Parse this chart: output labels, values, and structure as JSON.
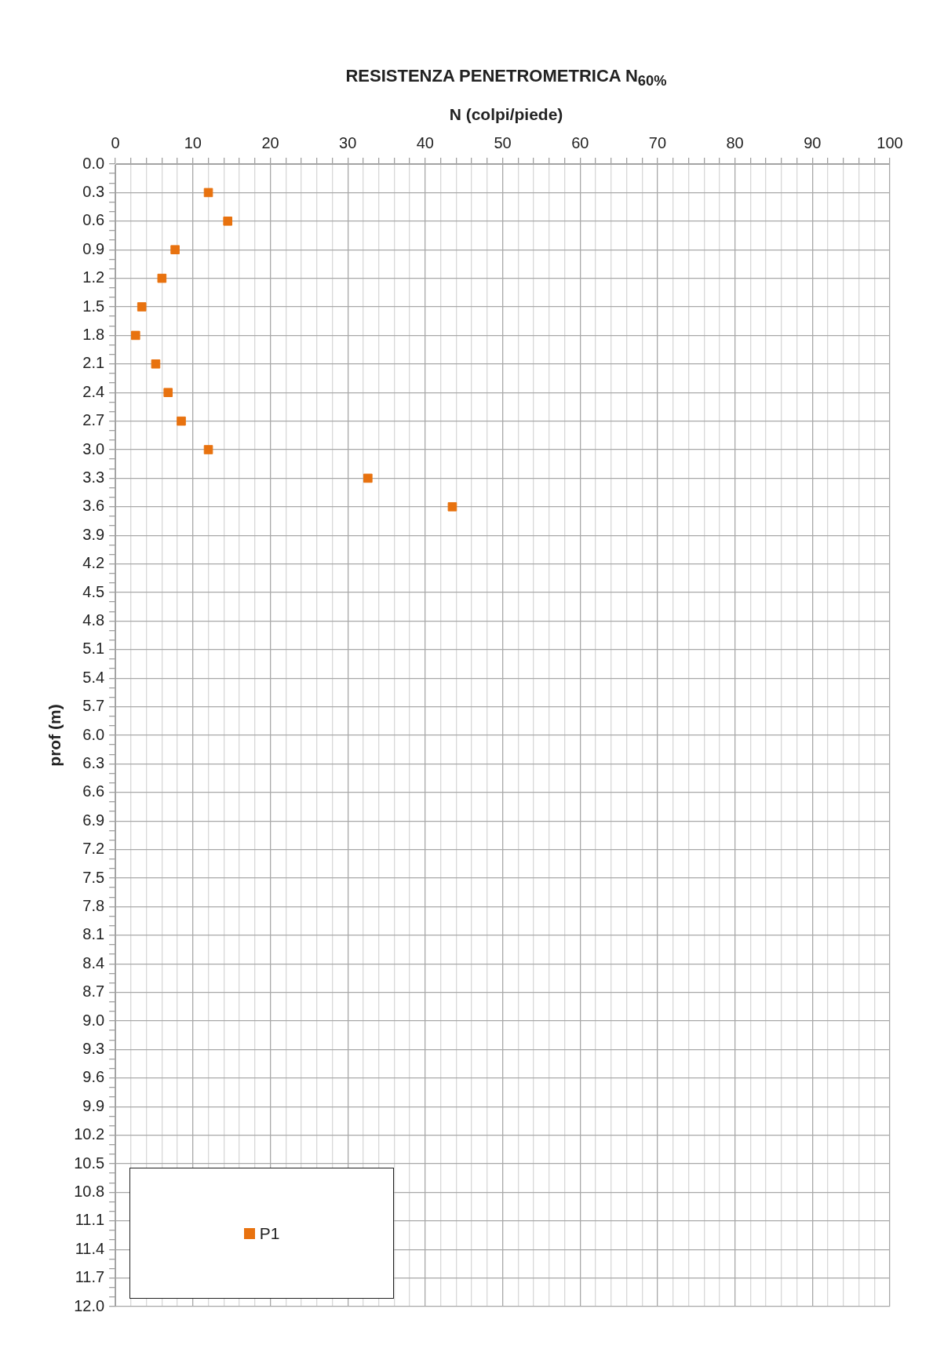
{
  "chart_data": {
    "type": "scatter",
    "title": "RESISTENZA PENETROMETRICA N$_{60%}$",
    "xlabel": "N (colpi/piede)",
    "ylabel": "prof (m)",
    "series": [
      {
        "name": "P1",
        "color": "#e8720f",
        "x": [
          12.0,
          14.5,
          7.7,
          6.0,
          3.4,
          2.6,
          5.2,
          6.8,
          8.5,
          12.0,
          32.6,
          43.5
        ],
        "values": [
          0.3,
          0.6,
          0.9,
          1.2,
          1.5,
          1.8,
          2.1,
          2.4,
          2.7,
          3.0,
          3.3,
          3.6
        ]
      }
    ],
    "marker": "square",
    "grid": true,
    "legend": "bottom left",
    "xlim": [
      0,
      100
    ],
    "xticks": [
      0,
      {
        "value": 2,
        "label": null
      },
      {
        "value": 4,
        "label": null
      },
      {
        "value": 6,
        "label": null
      },
      {
        "value": 8,
        "label": null
      },
      10,
      {
        "value": 12,
        "label": null
      },
      {
        "value": 14,
        "label": null
      },
      {
        "value": 16,
        "label": null
      },
      {
        "value": 18,
        "label": null
      },
      20,
      {
        "value": 22,
        "label": null
      },
      {
        "value": 24,
        "label": null
      },
      {
        "value": 26,
        "label": null
      },
      {
        "value": 28,
        "label": null
      },
      30,
      {
        "value": 32,
        "label": null
      },
      {
        "value": 34,
        "label": null
      },
      {
        "value": 36,
        "label": null
      },
      {
        "value": 38,
        "label": null
      },
      40,
      {
        "value": 42,
        "label": null
      },
      {
        "value": 44,
        "label": null
      },
      {
        "value": 46,
        "label": null
      },
      {
        "value": 48,
        "label": null
      },
      50,
      {
        "value": 52,
        "label": null
      },
      {
        "value": 54,
        "label": null
      },
      {
        "value": 56,
        "label": null
      },
      {
        "value": 58,
        "label": null
      },
      60,
      {
        "value": 62,
        "label": null
      },
      {
        "value": 64,
        "label": null
      },
      {
        "value": 66,
        "label": null
      },
      {
        "value": 68,
        "label": null
      },
      70,
      {
        "value": 72,
        "label": null
      },
      {
        "value": 74,
        "label": null
      },
      {
        "value": 76,
        "label": null
      },
      {
        "value": 78,
        "label": null
      },
      80,
      {
        "value": 82,
        "label": null
      },
      {
        "value": 84,
        "label": null
      },
      {
        "value": 86,
        "label": null
      },
      {
        "value": 88,
        "label": null
      },
      90,
      {
        "value": 92,
        "label": null
      },
      {
        "value": 94,
        "label": null
      },
      {
        "value": 96,
        "label": null
      },
      {
        "value": 98,
        "label": null
      },
      100
    ],
    "ylim": [
      12,
      0
    ],
    "yticks": [
      {
        "value": 0,
        "label": "0.0"
      },
      {
        "value": 0.1,
        "label": null
      },
      {
        "value": 0.2,
        "label": null
      },
      0.3,
      {
        "value": 0.4,
        "label": null
      },
      {
        "value": 0.5,
        "label": null
      },
      0.6,
      {
        "value": 0.7,
        "label": null
      },
      {
        "value": 0.8,
        "label": null
      },
      0.9,
      {
        "value": 1.0,
        "label": null
      },
      {
        "value": 1.1,
        "label": null
      },
      1.2,
      {
        "value": 1.3,
        "label": null
      },
      {
        "value": 1.4,
        "label": null
      },
      1.5,
      {
        "value": 1.6,
        "label": null
      },
      {
        "value": 1.7,
        "label": null
      },
      1.8,
      {
        "value": 1.9,
        "label": null
      },
      {
        "value": 2.0,
        "label": null
      },
      2.1,
      {
        "value": 2.2,
        "label": null
      },
      {
        "value": 2.3,
        "label": null
      },
      2.4,
      {
        "value": 2.5,
        "label": null
      },
      {
        "value": 2.6,
        "label": null
      },
      2.7,
      {
        "value": 2.8,
        "label": null
      },
      {
        "value": 2.9,
        "label": null
      },
      {
        "value": 3,
        "label": "3.0"
      },
      {
        "value": 3.1,
        "label": null
      },
      {
        "value": 3.2,
        "label": null
      },
      3.3,
      {
        "value": 3.4,
        "label": null
      },
      {
        "value": 3.5,
        "label": null
      },
      3.6,
      {
        "value": 3.7,
        "label": null
      },
      {
        "value": 3.8,
        "label": null
      },
      3.9,
      {
        "value": 4.0,
        "label": null
      },
      {
        "value": 4.1,
        "label": null
      },
      4.2,
      {
        "value": 4.3,
        "label": null
      },
      {
        "value": 4.4,
        "label": null
      },
      4.5,
      {
        "value": 4.6,
        "label": null
      },
      {
        "value": 4.7,
        "label": null
      },
      4.8,
      {
        "value": 4.9,
        "label": null
      },
      {
        "value": 5.0,
        "label": null
      },
      5.1,
      {
        "value": 5.2,
        "label": null
      },
      {
        "value": 5.3,
        "label": null
      },
      5.4,
      {
        "value": 5.5,
        "label": null
      },
      {
        "value": 5.6,
        "label": null
      },
      5.7,
      {
        "value": 5.8,
        "label": null
      },
      {
        "value": 5.9,
        "label": null
      },
      {
        "value": 6,
        "label": "6.0"
      },
      {
        "value": 6.1,
        "label": null
      },
      {
        "value": 6.2,
        "label": null
      },
      6.3,
      {
        "value": 6.4,
        "label": null
      },
      {
        "value": 6.5,
        "label": null
      },
      6.6,
      {
        "value": 6.7,
        "label": null
      },
      {
        "value": 6.8,
        "label": null
      },
      6.9,
      {
        "value": 7.0,
        "label": null
      },
      {
        "value": 7.1,
        "label": null
      },
      7.2,
      {
        "value": 7.3,
        "label": null
      },
      {
        "value": 7.4,
        "label": null
      },
      7.5,
      {
        "value": 7.6,
        "label": null
      },
      {
        "value": 7.7,
        "label": null
      },
      7.8,
      {
        "value": 7.9,
        "label": null
      },
      {
        "value": 8.0,
        "label": null
      },
      8.1,
      {
        "value": 8.2,
        "label": null
      },
      {
        "value": 8.3,
        "label": null
      },
      8.4,
      {
        "value": 8.5,
        "label": null
      },
      {
        "value": 8.6,
        "label": null
      },
      8.7,
      {
        "value": 8.8,
        "label": null
      },
      {
        "value": 8.9,
        "label": null
      },
      {
        "value": 9,
        "label": "9.0"
      },
      {
        "value": 9.1,
        "label": null
      },
      {
        "value": 9.2,
        "label": null
      },
      9.3,
      {
        "value": 9.4,
        "label": null
      },
      {
        "value": 9.5,
        "label": null
      },
      9.6,
      {
        "value": 9.7,
        "label": null
      },
      {
        "value": 9.8,
        "label": null
      },
      9.9,
      {
        "value": 10.0,
        "label": null
      },
      {
        "value": 10.1,
        "label": null
      },
      10.2,
      {
        "value": 10.3,
        "label": null
      },
      {
        "value": 10.4,
        "label": null
      },
      10.5,
      {
        "value": 10.6,
        "label": null
      },
      {
        "value": 10.7,
        "label": null
      },
      10.8,
      {
        "value": 10.9,
        "label": null
      },
      {
        "value": 11.0,
        "label": null
      },
      11.1,
      {
        "value": 11.2,
        "label": null
      },
      {
        "value": 11.3,
        "label": null
      },
      11.4,
      {
        "value": 11.5,
        "label": null
      },
      {
        "value": 11.6,
        "label": null
      },
      11.7,
      {
        "value": 11.8,
        "label": null
      },
      {
        "value": 11.9,
        "label": null
      },
      {
        "value": 12,
        "label": "12.0"
      }
    ]
  }
}
